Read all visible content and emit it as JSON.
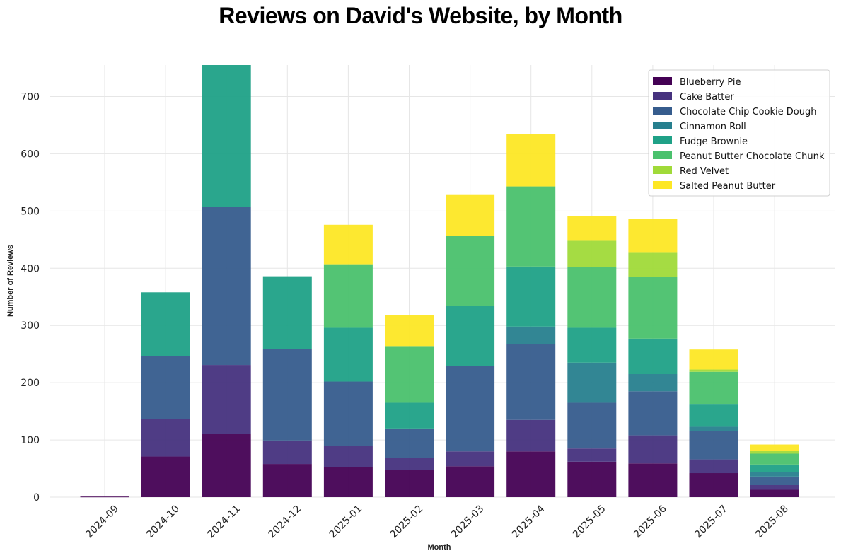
{
  "chart_data": {
    "type": "bar",
    "stacked": true,
    "title": "Reviews on David's Website, by Month",
    "xlabel": "Month",
    "ylabel": "Number of Reviews",
    "ylim": [
      0,
      755
    ],
    "yticks": [
      0,
      100,
      200,
      300,
      400,
      500,
      600,
      700
    ],
    "grid": true,
    "legend_position": "top-right",
    "categories": [
      "2024-09",
      "2024-10",
      "2024-11",
      "2024-12",
      "2025-01",
      "2025-02",
      "2025-03",
      "2025-04",
      "2025-05",
      "2025-06",
      "2025-07",
      "2025-08"
    ],
    "series": [
      {
        "name": "Blueberry Pie",
        "color": "#440154",
        "values": [
          1,
          71,
          110,
          58,
          53,
          47,
          54,
          80,
          62,
          59,
          42,
          13
        ]
      },
      {
        "name": "Cake Batter",
        "color": "#46327e",
        "values": [
          0,
          65,
          121,
          41,
          37,
          22,
          26,
          55,
          23,
          49,
          24,
          8
        ]
      },
      {
        "name": "Chocolate Chip Cookie Dough",
        "color": "#365c8d",
        "values": [
          0,
          111,
          276,
          160,
          112,
          51,
          149,
          133,
          80,
          77,
          49,
          15
        ]
      },
      {
        "name": "Cinnamon Roll",
        "color": "#277f8e",
        "values": [
          0,
          0,
          0,
          0,
          0,
          0,
          0,
          30,
          70,
          30,
          8,
          8
        ]
      },
      {
        "name": "Fudge Brownie",
        "color": "#1fa187",
        "values": [
          0,
          111,
          248,
          127,
          94,
          45,
          105,
          105,
          61,
          62,
          40,
          13
        ]
      },
      {
        "name": "Peanut Butter Chocolate Chunk",
        "color": "#4ac16d",
        "values": [
          0,
          0,
          0,
          0,
          111,
          99,
          122,
          140,
          106,
          108,
          56,
          19
        ]
      },
      {
        "name": "Red Velvet",
        "color": "#a0da39",
        "values": [
          0,
          0,
          0,
          0,
          0,
          0,
          0,
          0,
          46,
          42,
          4,
          5
        ]
      },
      {
        "name": "Salted Peanut Butter",
        "color": "#fde725",
        "values": [
          0,
          0,
          0,
          0,
          69,
          54,
          72,
          91,
          43,
          59,
          35,
          11
        ]
      }
    ]
  }
}
